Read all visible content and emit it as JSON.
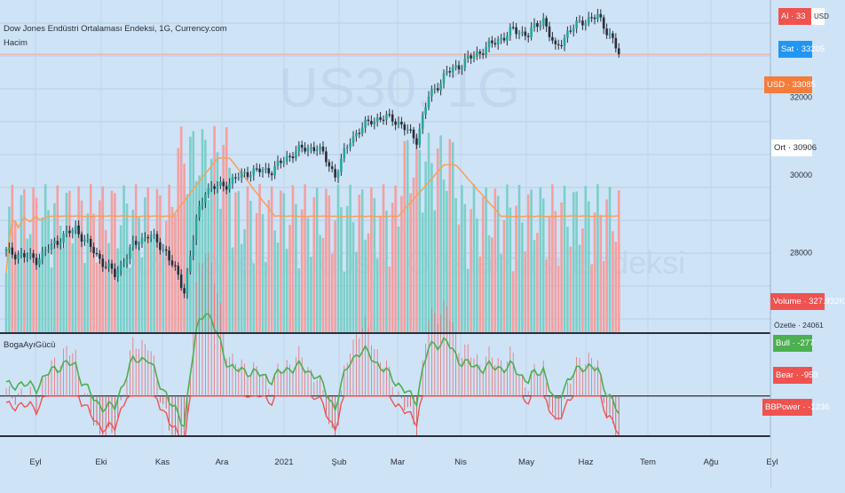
{
  "header": {
    "title": "Dow Jones Endüstri Ortalaması Endeksi, 1G, Currency.com",
    "volume_label": "Hacim",
    "indicator_label": "BogaAyıGücü"
  },
  "watermark": {
    "symbol": "US30, 1G",
    "name": "Dow Jones Endüstri Ortalaması Endeksi"
  },
  "price_scale": {
    "currency": "USD",
    "ticks": [
      "32000",
      "30000",
      "28000"
    ],
    "al": {
      "label": "Al",
      "value": "33",
      "color": "#ef5350"
    },
    "sat": {
      "label": "Sat",
      "value": "33205",
      "color": "#2196f3"
    },
    "usd": {
      "label": "USD",
      "value": "33085",
      "color": "#f57c3a"
    },
    "ort": {
      "label": "Ort",
      "value": "30906"
    },
    "volume": {
      "label": "Volume",
      "value": "327.932K",
      "color": "#ef5350"
    },
    "ozet": {
      "label": "Özetle",
      "value": "24061"
    }
  },
  "indicator_scale": {
    "bull": {
      "label": "Bull",
      "value": "-277",
      "color": "#4caf50"
    },
    "bear": {
      "label": "Bear",
      "value": "-959",
      "color": "#ef5350"
    },
    "bbpower": {
      "label": "BBPower",
      "value": "-1236",
      "color": "#ef5350"
    }
  },
  "time_axis": [
    "Eyl",
    "Eki",
    "Kas",
    "Ara",
    "2021",
    "Şub",
    "Mar",
    "Nis",
    "May",
    "Haz",
    "Tem",
    "Ağu",
    "Eyl"
  ],
  "colors": {
    "up": "#26a69a",
    "down": "#ef5350",
    "candle_body": "#2a2e39",
    "ma": "#f5a25d",
    "bull_line": "#4caf50",
    "bear_line": "#ef5350"
  },
  "chart_data": {
    "type": "candlestick",
    "title": "Dow Jones Endüstri Ortalaması Endeksi, 1G, Currency.com",
    "xlabel": "",
    "ylabel": "USD",
    "ylim": [
      25900,
      34300
    ],
    "grid": true,
    "close_anchors": [
      {
        "x": 0,
        "close": 28000
      },
      {
        "x": 10,
        "close": 27800
      },
      {
        "x": 18,
        "close": 28350
      },
      {
        "x": 23,
        "close": 28600
      },
      {
        "x": 30,
        "close": 27900
      },
      {
        "x": 36,
        "close": 27400
      },
      {
        "x": 42,
        "close": 28150
      },
      {
        "x": 47,
        "close": 28450
      },
      {
        "x": 53,
        "close": 28000
      },
      {
        "x": 59,
        "close": 27000
      },
      {
        "x": 63,
        "close": 28800
      },
      {
        "x": 66,
        "close": 29600
      },
      {
        "x": 72,
        "close": 29700
      },
      {
        "x": 80,
        "close": 30050
      },
      {
        "x": 88,
        "close": 30100
      },
      {
        "x": 96,
        "close": 30600
      },
      {
        "x": 103,
        "close": 30700
      },
      {
        "x": 107,
        "close": 30250
      },
      {
        "x": 109,
        "close": 29950
      },
      {
        "x": 114,
        "close": 30900
      },
      {
        "x": 121,
        "close": 31400
      },
      {
        "x": 128,
        "close": 31450
      },
      {
        "x": 133,
        "close": 31100
      },
      {
        "x": 136,
        "close": 30900
      },
      {
        "x": 140,
        "close": 32000
      },
      {
        "x": 146,
        "close": 32600
      },
      {
        "x": 152,
        "close": 32900
      },
      {
        "x": 160,
        "close": 33300
      },
      {
        "x": 168,
        "close": 33700
      },
      {
        "x": 173,
        "close": 33600
      },
      {
        "x": 178,
        "close": 34000
      },
      {
        "x": 182,
        "close": 33200
      },
      {
        "x": 186,
        "close": 33650
      },
      {
        "x": 191,
        "close": 33950
      },
      {
        "x": 196,
        "close": 34050
      },
      {
        "x": 200,
        "close": 33600
      },
      {
        "x": 203,
        "close": 33085
      }
    ],
    "volume_ylim": [
      0,
      1400000
    ],
    "indicator_ylim": [
      -1800,
      2800
    ]
  }
}
